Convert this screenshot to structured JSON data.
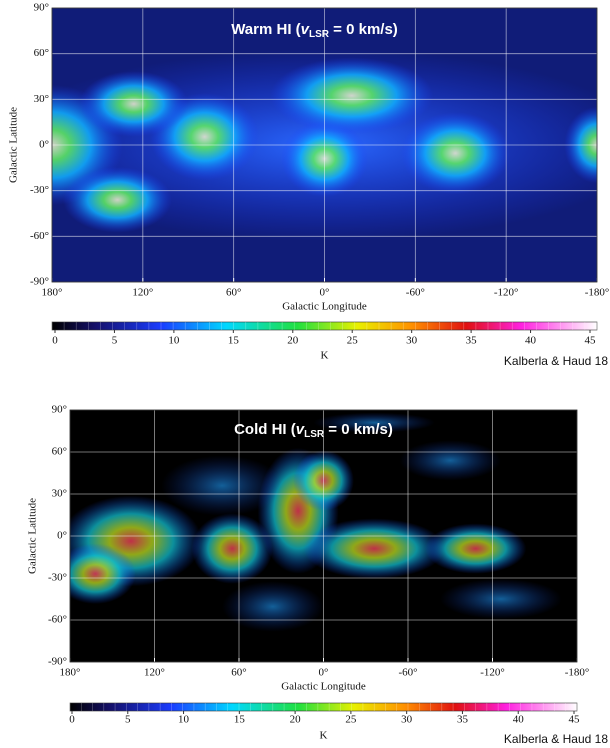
{
  "chart_data": [
    {
      "type": "sky-map",
      "title_prefix": "Warm HI (",
      "title_var": "v",
      "title_sub": "LSR",
      "title_suffix": " = 0 km/s)",
      "xlabel": "Galactic Longitude",
      "ylabel": "Galactic Latitude",
      "xlim": [
        180,
        -180
      ],
      "ylim": [
        -90,
        90
      ],
      "xticks": [
        {
          "value": 180,
          "label": "180°"
        },
        {
          "value": 120,
          "label": "120°"
        },
        {
          "value": 60,
          "label": "60°"
        },
        {
          "value": 0,
          "label": "0°"
        },
        {
          "value": -60,
          "label": "-60°"
        },
        {
          "value": -120,
          "label": "-120°"
        },
        {
          "value": -180,
          "label": "-180°"
        }
      ],
      "yticks": [
        {
          "value": 90,
          "label": "90°"
        },
        {
          "value": 60,
          "label": "60°"
        },
        {
          "value": 30,
          "label": "30°"
        },
        {
          "value": 0,
          "label": "0°"
        },
        {
          "value": -30,
          "label": "-30°"
        },
        {
          "value": -60,
          "label": "-60°"
        },
        {
          "value": -90,
          "label": "-90°"
        }
      ],
      "grid": true,
      "colorbar": {
        "lim": [
          0,
          45
        ],
        "ticks": [
          0,
          5,
          10,
          15,
          20,
          25,
          30,
          35,
          40,
          45
        ],
        "label": "K"
      },
      "credit": "Kalberla & Haud 18"
    },
    {
      "type": "sky-map",
      "title_prefix": "Cold HI (",
      "title_var": "v",
      "title_sub": "LSR",
      "title_suffix": " = 0 km/s)",
      "xlabel": "Galactic Longitude",
      "ylabel": "Galactic Latitude",
      "xlim": [
        180,
        -180
      ],
      "ylim": [
        -90,
        90
      ],
      "xticks": [
        {
          "value": 180,
          "label": "180°"
        },
        {
          "value": 120,
          "label": "120°"
        },
        {
          "value": 60,
          "label": "60°"
        },
        {
          "value": 0,
          "label": "0°"
        },
        {
          "value": -60,
          "label": "-60°"
        },
        {
          "value": -120,
          "label": "-120°"
        },
        {
          "value": -180,
          "label": "-180°"
        }
      ],
      "yticks": [
        {
          "value": 90,
          "label": "90°"
        },
        {
          "value": 60,
          "label": "60°"
        },
        {
          "value": 30,
          "label": "30°"
        },
        {
          "value": 0,
          "label": "0°"
        },
        {
          "value": -30,
          "label": "-30°"
        },
        {
          "value": -60,
          "label": "-60°"
        },
        {
          "value": -90,
          "label": "-90°"
        }
      ],
      "grid": true,
      "colorbar": {
        "lim": [
          0,
          45
        ],
        "ticks": [
          0,
          5,
          10,
          15,
          20,
          25,
          30,
          35,
          40,
          45
        ],
        "label": "K"
      },
      "credit": "Kalberla & Haud 18"
    }
  ]
}
